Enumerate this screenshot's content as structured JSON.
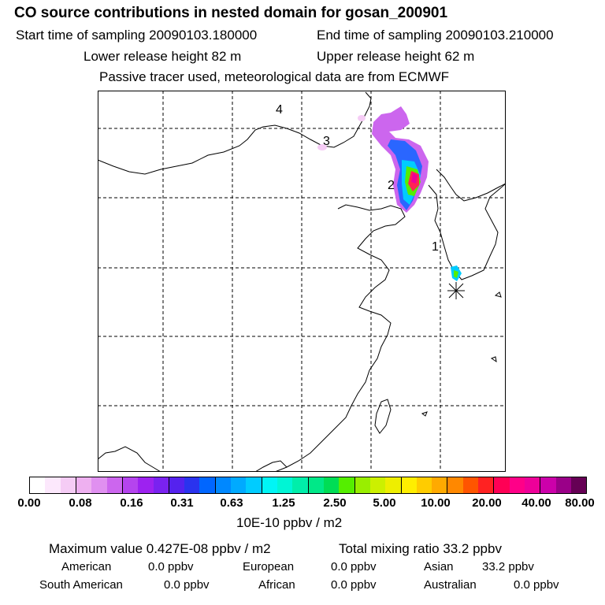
{
  "header": {
    "title": "CO  source contributions in nested domain for gosan_200901",
    "start_time": "Start time of sampling 20090103.180000",
    "end_time": "End time of sampling 20090103.210000",
    "lower_release": "Lower release height   82 m",
    "upper_release": "Upper release height   62 m",
    "tracer_note": "Passive tracer used, meteorological data are from ECMWF"
  },
  "map": {
    "markers": [
      {
        "label": "1"
      },
      {
        "label": "2"
      },
      {
        "label": "3"
      },
      {
        "label": "4"
      }
    ]
  },
  "colorbar": {
    "colors": [
      "#ffffff",
      "#fce8fc",
      "#f5ccf5",
      "#eeb0f0",
      "#e090f0",
      "#cc66ee",
      "#b544ee",
      "#9d22f0",
      "#7a22f0",
      "#5522ee",
      "#2a33ee",
      "#0066ff",
      "#0088ff",
      "#00aaff",
      "#00ccff",
      "#00f5f5",
      "#00f5d5",
      "#00eeaa",
      "#00e888",
      "#00dd55",
      "#55ee00",
      "#99ee00",
      "#ccf000",
      "#eeee00",
      "#ffee00",
      "#ffcc00",
      "#ffaa00",
      "#ff8800",
      "#ff5500",
      "#ff2222",
      "#ff0055",
      "#ff0088",
      "#ee0099",
      "#cc00aa",
      "#9a0088",
      "#660055"
    ],
    "ticks": [
      "0.00",
      "0.08",
      "0.16",
      "0.31",
      "0.63",
      "1.25",
      "2.50",
      "5.00",
      "10.00",
      "20.00",
      "40.00",
      "80.00"
    ],
    "units": "10E-10 ppbv / m2"
  },
  "stats": {
    "max_value": "Maximum value  0.427E-08 ppbv / m2",
    "total_mixing": "Total mixing ratio       33.2 ppbv",
    "american_label": "American",
    "american_value": "0.0 ppbv",
    "european_label": "European",
    "european_value": "0.0 ppbv",
    "asian_label": "Asian",
    "asian_value": "33.2 ppbv",
    "south_american_label": "South American",
    "south_american_value": "0.0 ppbv",
    "african_label": "African",
    "african_value": "0.0 ppbv",
    "australian_label": "Australian",
    "australian_value": "0.0 ppbv"
  }
}
